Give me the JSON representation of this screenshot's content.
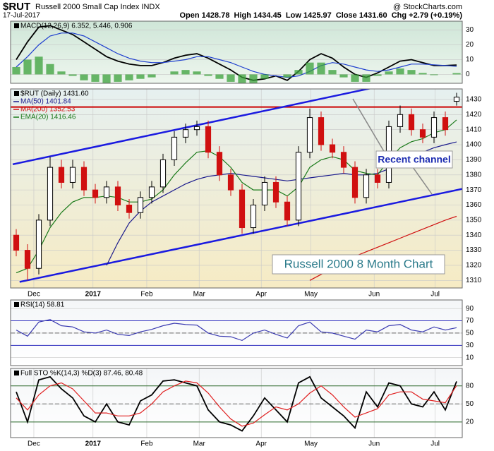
{
  "header": {
    "symbol": "$RUT",
    "name": "Russell 2000 Small Cap Index INDX",
    "date": "17-Jul-2017",
    "quote": "Open 1428.78  High 1434.45  Low 1425.97  Close 1431.60  Chg +2.79 (+0.19%)",
    "credit": "@ StockCharts.com"
  },
  "chart_data": [
    {
      "type": "macd",
      "label": "MACD(12,26,9) 6.352, 5.446, 0.906",
      "ylim": [
        -6,
        36
      ],
      "yticks": [
        0,
        10,
        20,
        30
      ],
      "xlim": [
        0,
        40
      ],
      "series": [
        {
          "name": "MACD",
          "color": "#000000",
          "style": "line",
          "values": [
            10,
            22,
            32,
            33,
            30,
            27,
            22,
            17,
            12,
            9,
            7,
            6,
            6,
            8,
            11,
            13,
            14,
            11,
            7,
            3,
            -2,
            -4,
            -3,
            -1,
            -4,
            2,
            10,
            14,
            11,
            5,
            0,
            -2,
            1,
            5,
            9,
            10,
            8,
            6,
            6,
            6.352
          ]
        },
        {
          "name": "Signal",
          "color": "#1f3fcf",
          "style": "line",
          "values": [
            5,
            12,
            20,
            26,
            28,
            28,
            26,
            22,
            18,
            14,
            11,
            9,
            8,
            8,
            9,
            10,
            12,
            12,
            10,
            8,
            5,
            2,
            0,
            -1,
            -2,
            -1,
            2,
            6,
            8,
            7,
            5,
            3,
            2,
            3,
            5,
            7,
            7,
            6.5,
            6,
            5.446
          ]
        },
        {
          "name": "Histogram",
          "color": "#3aa03a",
          "style": "histogram",
          "values": [
            5,
            10,
            12,
            7,
            2,
            -1,
            -4,
            -5,
            -6,
            -5,
            -4,
            -3,
            -2,
            0,
            2,
            3,
            2,
            -1,
            -3,
            -5,
            -7,
            -6,
            -3,
            0,
            -2,
            3,
            8,
            8,
            3,
            -2,
            -5,
            -5,
            -1,
            2,
            4,
            3,
            1,
            -0.5,
            0,
            0.906
          ]
        }
      ]
    },
    {
      "type": "candlestick",
      "label": "$RUT (Daily) 1431.60",
      "ylim": [
        1305,
        1437
      ],
      "yticks": [
        1310,
        1320,
        1330,
        1340,
        1350,
        1360,
        1370,
        1380,
        1390,
        1400,
        1410,
        1420,
        1430
      ],
      "xlim": [
        0,
        40
      ],
      "xticks": [
        {
          "value": 2.06,
          "label": "Dec"
        },
        {
          "value": 7.3,
          "label": "2017"
        },
        {
          "value": 12.06,
          "label": "Feb"
        },
        {
          "value": 16.7,
          "label": "Mar"
        },
        {
          "value": 22.2,
          "label": "Apr"
        },
        {
          "value": 26.6,
          "label": "May"
        },
        {
          "value": 32.2,
          "label": "Jun"
        },
        {
          "value": 37.6,
          "label": "Jul"
        }
      ],
      "up_color": "#000000",
      "down_color": "#d01010",
      "open": [
        1340,
        1330,
        1318,
        1350,
        1385,
        1375,
        1385,
        1370,
        1365,
        1372,
        1360,
        1355,
        1365,
        1372,
        1390,
        1405,
        1410,
        1412,
        1395,
        1380,
        1370,
        1345,
        1360,
        1375,
        1362,
        1350,
        1395,
        1418,
        1400,
        1395,
        1385,
        1365,
        1380,
        1375,
        1412,
        1420,
        1410,
        1405,
        1418,
        1428.78
      ],
      "high": [
        1344,
        1334,
        1354,
        1392,
        1390,
        1390,
        1389,
        1374,
        1376,
        1376,
        1364,
        1369,
        1376,
        1394,
        1409,
        1414,
        1416,
        1416,
        1399,
        1384,
        1374,
        1364,
        1379,
        1379,
        1366,
        1399,
        1424,
        1422,
        1404,
        1399,
        1389,
        1384,
        1384,
        1416,
        1426,
        1424,
        1414,
        1422,
        1422,
        1434.45
      ],
      "low": [
        1326,
        1310,
        1314,
        1346,
        1371,
        1371,
        1366,
        1361,
        1361,
        1356,
        1351,
        1351,
        1361,
        1368,
        1386,
        1401,
        1406,
        1391,
        1376,
        1366,
        1341,
        1341,
        1356,
        1358,
        1346,
        1346,
        1391,
        1396,
        1391,
        1381,
        1361,
        1361,
        1371,
        1371,
        1408,
        1406,
        1401,
        1401,
        1406,
        1425.97
      ],
      "close": [
        1330,
        1318,
        1350,
        1385,
        1375,
        1385,
        1370,
        1365,
        1372,
        1360,
        1355,
        1365,
        1372,
        1390,
        1405,
        1410,
        1412,
        1395,
        1380,
        1370,
        1345,
        1360,
        1375,
        1362,
        1350,
        1395,
        1418,
        1400,
        1395,
        1385,
        1365,
        1380,
        1375,
        1412,
        1420,
        1410,
        1405,
        1418,
        1410,
        1431.6
      ],
      "series": [
        {
          "name": "MA(50) 1401.84",
          "color": "#1a1a8c",
          "style": "line",
          "values": [
            null,
            null,
            null,
            null,
            null,
            null,
            null,
            null,
            1320,
            1335,
            1348,
            1356,
            1362,
            1366,
            1370,
            1374,
            1377,
            1379,
            1380,
            1381,
            1380,
            1379,
            1378,
            1377,
            1376,
            1377,
            1378,
            1379,
            1380,
            1381,
            1380,
            1380,
            1381,
            1384,
            1388,
            1392,
            1395,
            1398,
            1400,
            1401.84
          ]
        },
        {
          "name": "MA(200) 1352.53",
          "color": "#d01010",
          "style": "line",
          "values": [
            null,
            null,
            null,
            null,
            null,
            null,
            null,
            null,
            null,
            null,
            null,
            null,
            null,
            null,
            null,
            null,
            null,
            null,
            null,
            null,
            null,
            null,
            null,
            null,
            null,
            null,
            1310,
            1314,
            1318,
            1322,
            1326,
            1329,
            1332,
            1335,
            1338,
            1341,
            1344,
            1347,
            1350,
            1352.53
          ]
        },
        {
          "name": "EMA(20) 1416.46",
          "color": "#1a7a1a",
          "style": "line",
          "values": [
            1315,
            1318,
            1330,
            1345,
            1355,
            1362,
            1365,
            1365,
            1366,
            1365,
            1362,
            1362,
            1364,
            1370,
            1380,
            1388,
            1395,
            1396,
            1392,
            1385,
            1375,
            1370,
            1370,
            1370,
            1366,
            1372,
            1385,
            1390,
            1392,
            1390,
            1383,
            1381,
            1380,
            1390,
            1398,
            1402,
            1404,
            1408,
            1410,
            1416.46
          ]
        }
      ],
      "hlines": [
        {
          "value": 1425,
          "color": "#cc0000"
        }
      ],
      "trendlines": [
        {
          "x": [
            0.19,
            32.5
          ],
          "y": [
            1387,
            1438.4
          ],
          "color": "#1a1ae0"
        },
        {
          "x": [
            0.8,
            40
          ],
          "y": [
            1309,
            1370.7
          ],
          "color": "#1a1ae0"
        }
      ],
      "annotations": [
        "Recent channel",
        "Russell 2000 8 Month Chart"
      ]
    },
    {
      "type": "line",
      "label": "RSI(14) 58.81",
      "ylim": [
        -3,
        104
      ],
      "yticks": [
        10,
        30,
        50,
        70,
        90
      ],
      "xlim": [
        0,
        40
      ],
      "hlines": [
        {
          "value": 70,
          "color": "#3030c0"
        },
        {
          "value": 30,
          "color": "#3030c0"
        },
        {
          "value": 50,
          "color": "#666666",
          "dash": true
        }
      ],
      "series": [
        {
          "name": "RSI",
          "color": "#3a3ab0",
          "style": "line",
          "values": [
            55,
            45,
            68,
            72,
            62,
            60,
            52,
            50,
            55,
            48,
            46,
            52,
            56,
            62,
            66,
            64,
            63,
            50,
            45,
            44,
            38,
            50,
            55,
            48,
            42,
            62,
            68,
            52,
            50,
            45,
            40,
            55,
            52,
            62,
            64,
            55,
            52,
            60,
            55,
            58.81
          ]
        }
      ]
    },
    {
      "type": "line",
      "label": "Full STO %K(14,3) %D(3) 87.46, 80.48",
      "ylim": [
        -6,
        109
      ],
      "yticks": [
        20,
        50,
        80
      ],
      "xlim": [
        0,
        40
      ],
      "xticks": [
        {
          "value": 2.06,
          "label": "Dec"
        },
        {
          "value": 7.3,
          "label": "2017"
        },
        {
          "value": 12.06,
          "label": "Feb"
        },
        {
          "value": 16.7,
          "label": "Mar"
        },
        {
          "value": 22.2,
          "label": "Apr"
        },
        {
          "value": 26.6,
          "label": "May"
        },
        {
          "value": 32.2,
          "label": "Jun"
        },
        {
          "value": 37.6,
          "label": "Jul"
        }
      ],
      "hlines": [
        {
          "value": 80,
          "color": "#2a6a2a"
        },
        {
          "value": 20,
          "color": "#2a6a2a"
        },
        {
          "value": 50,
          "color": "#666666",
          "dash": true
        }
      ],
      "series": [
        {
          "name": "%K",
          "color": "#000000",
          "style": "line",
          "values": [
            70,
            20,
            90,
            95,
            75,
            60,
            30,
            20,
            50,
            20,
            15,
            55,
            65,
            88,
            90,
            85,
            80,
            40,
            20,
            15,
            5,
            30,
            60,
            40,
            20,
            85,
            95,
            60,
            45,
            30,
            10,
            70,
            45,
            85,
            80,
            50,
            45,
            70,
            40,
            87.46
          ]
        },
        {
          "name": "%D",
          "color": "#e02020",
          "style": "line",
          "values": [
            60,
            40,
            65,
            80,
            85,
            75,
            55,
            35,
            35,
            30,
            30,
            35,
            50,
            70,
            80,
            88,
            85,
            68,
            45,
            25,
            13,
            18,
            32,
            45,
            40,
            50,
            68,
            80,
            65,
            45,
            28,
            35,
            42,
            65,
            70,
            70,
            58,
            55,
            52,
            80.48
          ]
        }
      ]
    }
  ]
}
